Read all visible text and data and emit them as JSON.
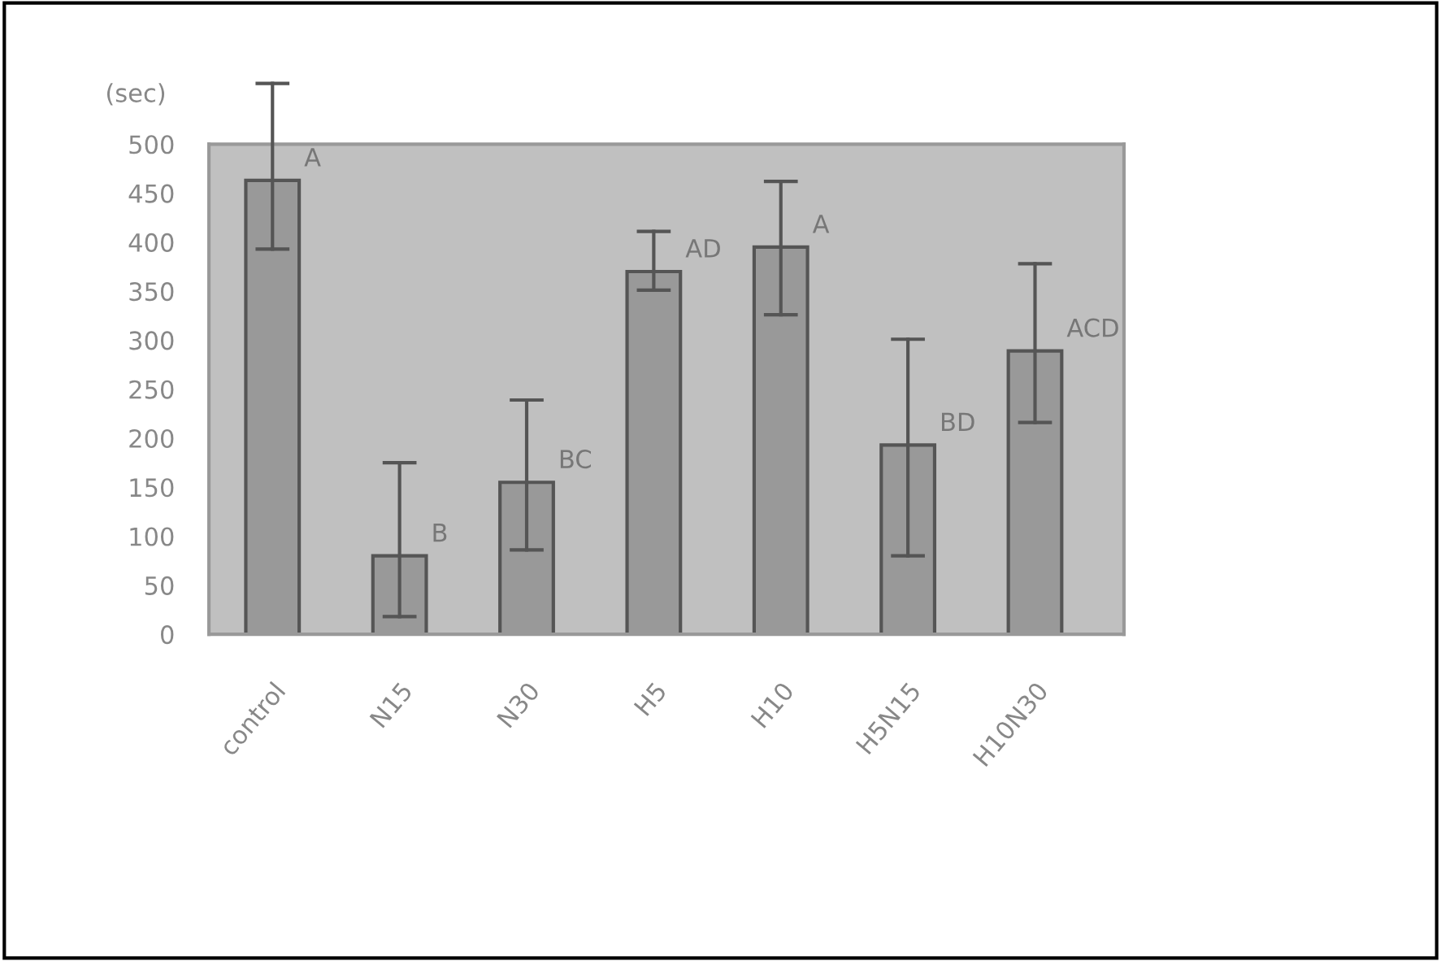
{
  "chart_data": {
    "type": "bar",
    "ylabel": "(sec)",
    "categories": [
      "control",
      "N15",
      "N30",
      "H5",
      "H10",
      "H5N15",
      "H10N30"
    ],
    "values": [
      463,
      80,
      155,
      370,
      395,
      193,
      289
    ],
    "errors": [
      [
        393,
        562
      ],
      [
        18,
        175
      ],
      [
        86,
        239
      ],
      [
        351,
        411
      ],
      [
        326,
        462
      ],
      [
        80,
        301
      ],
      [
        216,
        378
      ]
    ],
    "color": "#999999",
    "ylim": [
      0,
      500
    ],
    "yticks": [
      0,
      50,
      100,
      150,
      200,
      250,
      300,
      350,
      400,
      450,
      500
    ],
    "grid": false,
    "annotations": [
      {
        "text": "A",
        "x": "control",
        "y": 463
      },
      {
        "text": "B",
        "x": "N15",
        "y": 80
      },
      {
        "text": "BC",
        "x": "N30",
        "y": 155
      },
      {
        "text": "AD",
        "x": "H5",
        "y": 370
      },
      {
        "text": "A",
        "x": "H10",
        "y": 395
      },
      {
        "text": "BD",
        "x": "H5N15",
        "y": 193
      },
      {
        "text": "ACD",
        "x": "H10N30",
        "y": 289
      }
    ]
  }
}
